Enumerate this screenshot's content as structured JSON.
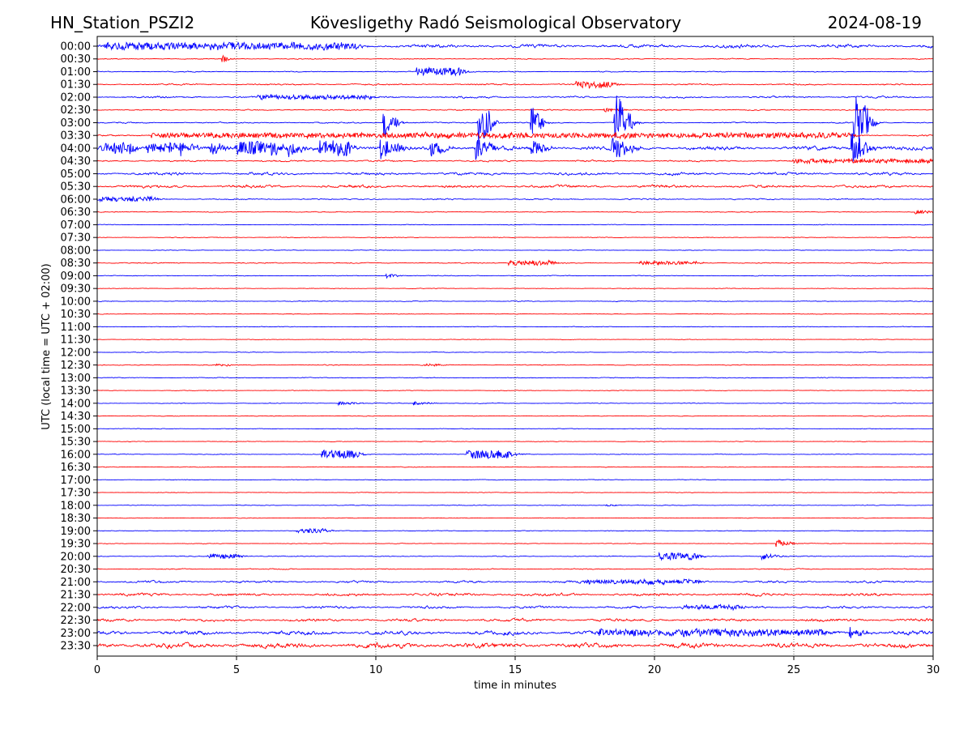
{
  "header": {
    "station": "HN_Station_PSZI2",
    "observatory": "Kövesligethy Radó Seismological Observatory",
    "date": "2024-08-19"
  },
  "chart_data": {
    "type": "line",
    "title": "Kövesligethy Radó Seismological Observatory",
    "xlabel": "time in minutes",
    "ylabel": "UTC (local time = UTC + 02:00)",
    "xlim": [
      0,
      30
    ],
    "xticks": [
      "0",
      "5",
      "10",
      "15",
      "20",
      "25",
      "30"
    ],
    "grid": "vertical dotted at every 5 minutes",
    "colors": [
      "#0000ff",
      "#ff0000"
    ],
    "rows": [
      "00:00",
      "00:30",
      "01:00",
      "01:30",
      "02:00",
      "02:30",
      "03:00",
      "03:30",
      "04:00",
      "04:30",
      "05:00",
      "05:30",
      "06:00",
      "06:30",
      "07:00",
      "07:30",
      "08:00",
      "08:30",
      "09:00",
      "09:30",
      "10:00",
      "10:30",
      "11:00",
      "11:30",
      "12:00",
      "12:30",
      "13:00",
      "13:30",
      "14:00",
      "14:30",
      "15:00",
      "15:30",
      "16:00",
      "16:30",
      "17:00",
      "17:30",
      "18:00",
      "18:30",
      "19:00",
      "19:30",
      "20:00",
      "20:30",
      "21:00",
      "21:30",
      "22:00",
      "22:30",
      "23:00",
      "23:30"
    ],
    "noise": [
      2.2,
      0.6,
      0.6,
      0.9,
      1.2,
      0.7,
      0.8,
      1.0,
      2.5,
      1.0,
      1.8,
      1.8,
      0.8,
      0.5,
      0.4,
      0.5,
      0.4,
      0.6,
      0.5,
      0.4,
      0.5,
      0.4,
      0.4,
      0.4,
      0.4,
      0.5,
      0.5,
      0.4,
      0.4,
      0.4,
      0.4,
      0.4,
      0.4,
      0.4,
      0.4,
      0.4,
      0.4,
      0.4,
      0.4,
      0.4,
      0.5,
      0.6,
      1.4,
      1.8,
      1.5,
      1.8,
      2.6,
      3.2
    ],
    "events": [
      {
        "row": 0,
        "minute": 0.3,
        "amp": 4,
        "duration": 9
      },
      {
        "row": 1,
        "minute": 4.5,
        "amp": 5,
        "duration": 0.1
      },
      {
        "row": 2,
        "minute": 11.5,
        "amp": 5,
        "duration": 1.5
      },
      {
        "row": 3,
        "minute": 17.2,
        "amp": 4,
        "duration": 1.2
      },
      {
        "row": 4,
        "minute": 5.8,
        "amp": 2.5,
        "duration": 4
      },
      {
        "row": 5,
        "minute": 18.2,
        "amp": 3,
        "duration": 0.8
      },
      {
        "row": 6,
        "minute": 10.3,
        "amp": 18,
        "duration": 0.4
      },
      {
        "row": 6,
        "minute": 13.7,
        "amp": 30,
        "duration": 0.4
      },
      {
        "row": 6,
        "minute": 15.6,
        "amp": 22,
        "duration": 0.3
      },
      {
        "row": 6,
        "minute": 18.6,
        "amp": 40,
        "duration": 0.5
      },
      {
        "row": 6,
        "minute": 27.2,
        "amp": 45,
        "duration": 0.5
      },
      {
        "row": 7,
        "minute": 2,
        "amp": 3,
        "duration": 25
      },
      {
        "row": 8,
        "minute": 0.2,
        "amp": 7,
        "duration": 1
      },
      {
        "row": 8,
        "minute": 1.8,
        "amp": 6,
        "duration": 1
      },
      {
        "row": 8,
        "minute": 3,
        "amp": 7,
        "duration": 0.8
      },
      {
        "row": 8,
        "minute": 4.1,
        "amp": 8,
        "duration": 0.6
      },
      {
        "row": 8,
        "minute": 5,
        "amp": 8,
        "duration": 1.5
      },
      {
        "row": 8,
        "minute": 6.9,
        "amp": 10,
        "duration": 0.6
      },
      {
        "row": 8,
        "minute": 8,
        "amp": 10,
        "duration": 1
      },
      {
        "row": 8,
        "minute": 10.2,
        "amp": 14,
        "duration": 0.8
      },
      {
        "row": 8,
        "minute": 12,
        "amp": 10,
        "duration": 0.6
      },
      {
        "row": 8,
        "minute": 13.6,
        "amp": 14,
        "duration": 0.7
      },
      {
        "row": 8,
        "minute": 15.6,
        "amp": 12,
        "duration": 0.6
      },
      {
        "row": 8,
        "minute": 18.5,
        "amp": 18,
        "duration": 0.8
      },
      {
        "row": 8,
        "minute": 27.1,
        "amp": 20,
        "duration": 0.8
      },
      {
        "row": 9,
        "minute": 25,
        "amp": 2.5,
        "duration": 5
      },
      {
        "row": 12,
        "minute": 0,
        "amp": 3,
        "duration": 2
      },
      {
        "row": 13,
        "minute": 29.4,
        "amp": 3,
        "duration": 0.6
      },
      {
        "row": 17,
        "minute": 14.8,
        "amp": 3,
        "duration": 1.5
      },
      {
        "row": 17,
        "minute": 19.5,
        "amp": 2,
        "duration": 2
      },
      {
        "row": 18,
        "minute": 10.4,
        "amp": 3,
        "duration": 0.4
      },
      {
        "row": 25,
        "minute": 4.3,
        "amp": 2,
        "duration": 0.5
      },
      {
        "row": 25,
        "minute": 11.8,
        "amp": 2,
        "duration": 0.6
      },
      {
        "row": 28,
        "minute": 8.7,
        "amp": 2.5,
        "duration": 0.8
      },
      {
        "row": 28,
        "minute": 11.4,
        "amp": 2.5,
        "duration": 0.8
      },
      {
        "row": 32,
        "minute": 8.1,
        "amp": 5,
        "duration": 1.2
      },
      {
        "row": 32,
        "minute": 13.3,
        "amp": 5,
        "duration": 1.5
      },
      {
        "row": 36,
        "minute": 18.3,
        "amp": 1.5,
        "duration": 0.5
      },
      {
        "row": 38,
        "minute": 7.2,
        "amp": 2.5,
        "duration": 1
      },
      {
        "row": 39,
        "minute": 24.4,
        "amp": 5,
        "duration": 0.6
      },
      {
        "row": 40,
        "minute": 4,
        "amp": 3,
        "duration": 1
      },
      {
        "row": 40,
        "minute": 20.2,
        "amp": 4.5,
        "duration": 1.2
      },
      {
        "row": 40,
        "minute": 23.9,
        "amp": 4,
        "duration": 0.8
      },
      {
        "row": 42,
        "minute": 17.5,
        "amp": 2.5,
        "duration": 4
      },
      {
        "row": 44,
        "minute": 21,
        "amp": 2.5,
        "duration": 2
      },
      {
        "row": 46,
        "minute": 18,
        "amp": 4,
        "duration": 8
      },
      {
        "row": 46,
        "minute": 27,
        "amp": 7,
        "duration": 0.6
      }
    ]
  }
}
